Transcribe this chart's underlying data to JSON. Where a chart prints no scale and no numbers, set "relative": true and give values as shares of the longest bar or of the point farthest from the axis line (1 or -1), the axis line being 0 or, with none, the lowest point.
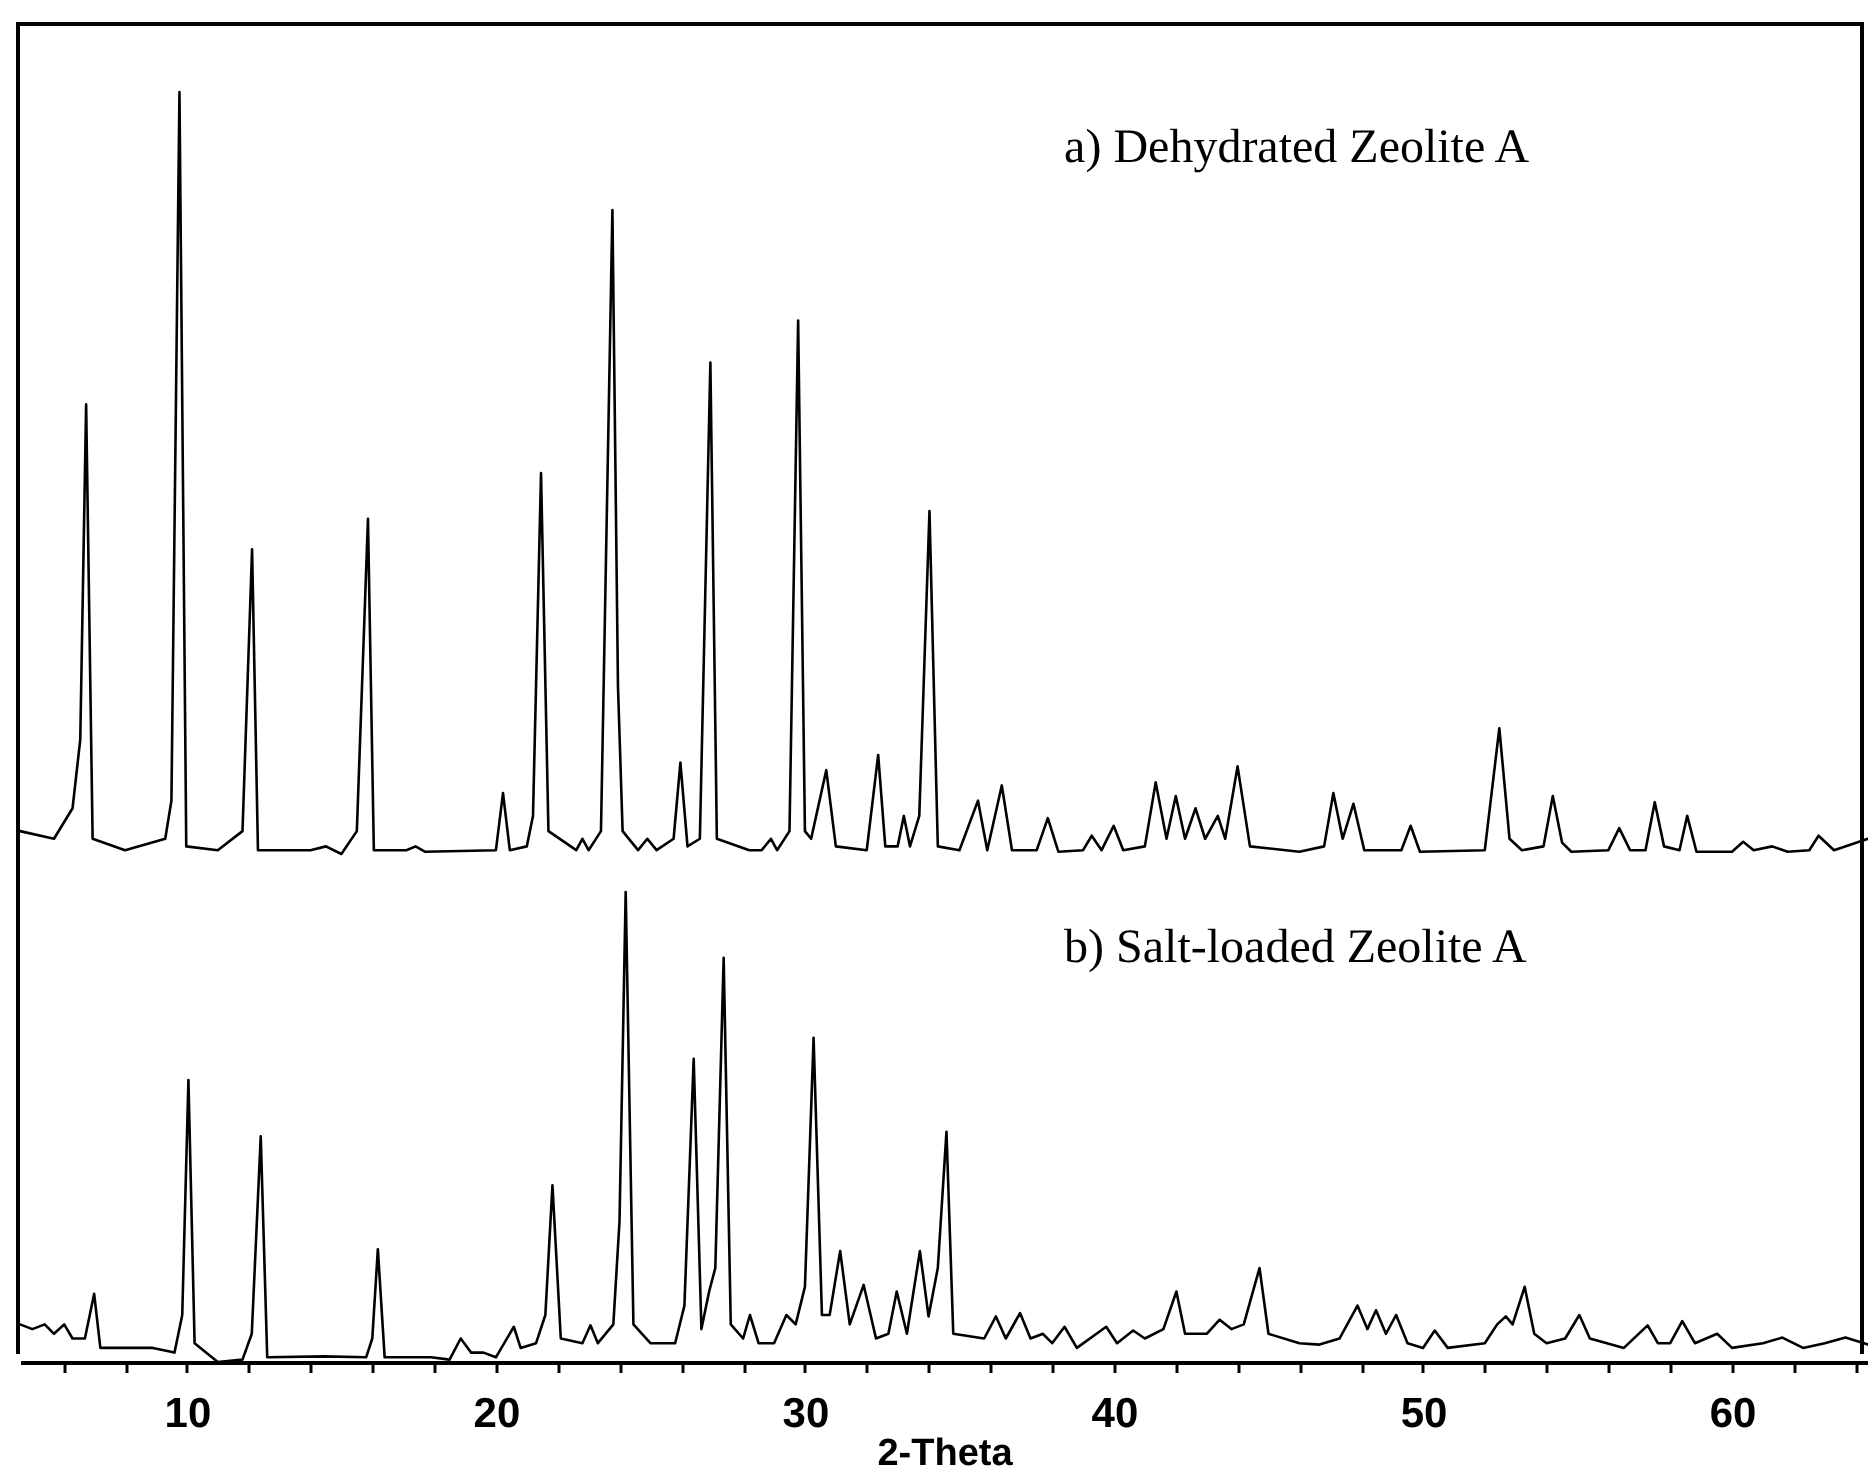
{
  "chart_data": [
    {
      "type": "line",
      "relative": true,
      "xlim": [
        4.6,
        64.4
      ],
      "tick_labels": false,
      "x": [
        4.6,
        5.7,
        6.3,
        6.55,
        6.74,
        6.95,
        8.0,
        9.3,
        9.5,
        9.76,
        9.98,
        11.0,
        11.8,
        12.11,
        12.3,
        14.0,
        14.5,
        15.0,
        15.5,
        15.86,
        16.05,
        17.1,
        17.4,
        17.7,
        20.0,
        20.23,
        20.45,
        21.0,
        21.2,
        21.46,
        21.7,
        22.6,
        22.8,
        23.0,
        23.4,
        23.77,
        23.95,
        24.1,
        24.6,
        24.9,
        25.2,
        25.75,
        25.97,
        26.2,
        26.6,
        26.94,
        27.15,
        28.2,
        28.6,
        28.9,
        29.1,
        29.5,
        29.78,
        30.0,
        30.2,
        30.69,
        31.0,
        32.0,
        32.37,
        32.6,
        33.0,
        33.2,
        33.4,
        33.7,
        34.03,
        34.3,
        35.0,
        35.6,
        35.9,
        36.37,
        36.7,
        37.5,
        37.86,
        38.2,
        39.0,
        39.28,
        39.6,
        39.99,
        40.3,
        41.0,
        41.35,
        41.7,
        42.0,
        42.3,
        42.64,
        42.95,
        43.36,
        43.6,
        44.0,
        44.4,
        46.0,
        46.8,
        47.1,
        47.4,
        47.75,
        48.1,
        49.3,
        49.6,
        49.9,
        52.0,
        52.47,
        52.8,
        53.2,
        53.9,
        54.2,
        54.5,
        54.8,
        56.0,
        56.35,
        56.7,
        57.2,
        57.5,
        57.8,
        58.3,
        58.55,
        58.85,
        60.0,
        60.36,
        60.7,
        61.3,
        61.8,
        62.5,
        62.8,
        63.3,
        64.4
      ],
      "series": [
        {
          "name": "a) Dehydrated Zeolite A",
          "color": "#000000",
          "values": [
            0.03,
            0.02,
            0.06,
            0.15,
            0.59,
            0.02,
            0.005,
            0.02,
            0.07,
            1.0,
            0.01,
            0.005,
            0.03,
            0.4,
            0.005,
            0.005,
            0.01,
            0,
            0.03,
            0.44,
            0.005,
            0.005,
            0.01,
            0.003,
            0.005,
            0.08,
            0.005,
            0.01,
            0.05,
            0.5,
            0.03,
            0.005,
            0.02,
            0.005,
            0.03,
            0.845,
            0.22,
            0.03,
            0.005,
            0.02,
            0.005,
            0.02,
            0.12,
            0.01,
            0.02,
            0.645,
            0.02,
            0.005,
            0.005,
            0.02,
            0.005,
            0.03,
            0.7,
            0.03,
            0.02,
            0.11,
            0.01,
            0.005,
            0.13,
            0.01,
            0.01,
            0.05,
            0.01,
            0.05,
            0.45,
            0.01,
            0.005,
            0.07,
            0.005,
            0.09,
            0.005,
            0.005,
            0.047,
            0.003,
            0.005,
            0.024,
            0.005,
            0.037,
            0.005,
            0.01,
            0.094,
            0.02,
            0.076,
            0.02,
            0.06,
            0.02,
            0.05,
            0.02,
            0.115,
            0.01,
            0.003,
            0.01,
            0.08,
            0.02,
            0.066,
            0.005,
            0.005,
            0.037,
            0.003,
            0.005,
            0.165,
            0.02,
            0.005,
            0.01,
            0.076,
            0.015,
            0.003,
            0.005,
            0.034,
            0.005,
            0.005,
            0.068,
            0.01,
            0.005,
            0.05,
            0.003,
            0.003,
            0.016,
            0.005,
            0.01,
            0.003,
            0.005,
            0.024,
            0.005,
            0.02
          ]
        }
      ]
    },
    {
      "type": "line",
      "relative": true,
      "xlim": [
        4.6,
        64.4
      ],
      "tick_labels": "x",
      "xlabel": "2-Theta",
      "xticks": [
        {
          "value": 6,
          "label": null
        },
        {
          "value": 8,
          "label": null
        },
        10,
        {
          "value": 12,
          "label": null
        },
        {
          "value": 14,
          "label": null
        },
        {
          "value": 16,
          "label": null
        },
        {
          "value": 18,
          "label": null
        },
        20,
        {
          "value": 22,
          "label": null
        },
        {
          "value": 24,
          "label": null
        },
        {
          "value": 26,
          "label": null
        },
        {
          "value": 28,
          "label": null
        },
        30,
        {
          "value": 32,
          "label": null
        },
        {
          "value": 34,
          "label": null
        },
        {
          "value": 36,
          "label": null
        },
        {
          "value": 38,
          "label": null
        },
        40,
        {
          "value": 42,
          "label": null
        },
        {
          "value": 44,
          "label": null
        },
        {
          "value": 46,
          "label": null
        },
        {
          "value": 48,
          "label": null
        },
        50,
        {
          "value": 52,
          "label": null
        },
        {
          "value": 54,
          "label": null
        },
        {
          "value": 56,
          "label": null
        },
        {
          "value": 58,
          "label": null
        },
        60,
        {
          "value": 62,
          "label": null
        },
        {
          "value": 64,
          "label": null
        }
      ],
      "x": [
        4.6,
        5.0,
        5.4,
        5.7,
        6.03,
        6.3,
        6.7,
        7.0,
        7.2,
        8.9,
        9.6,
        9.85,
        10.05,
        10.25,
        11.0,
        11.8,
        12.1,
        12.39,
        12.6,
        14.44,
        15.8,
        16.0,
        16.18,
        16.4,
        17.9,
        18.5,
        18.86,
        19.2,
        19.6,
        20.0,
        20.58,
        20.8,
        21.3,
        21.6,
        21.83,
        22.1,
        22.8,
        23.06,
        23.3,
        23.8,
        24.0,
        24.2,
        24.45,
        25.0,
        25.8,
        26.1,
        26.4,
        26.65,
        26.9,
        27.1,
        27.37,
        27.6,
        28.0,
        28.22,
        28.5,
        29.0,
        29.4,
        29.7,
        30.0,
        30.28,
        30.55,
        30.8,
        31.14,
        31.45,
        31.9,
        32.3,
        32.7,
        32.97,
        33.3,
        33.72,
        34.0,
        34.3,
        34.58,
        34.8,
        35.8,
        36.18,
        36.5,
        36.96,
        37.3,
        37.7,
        38.0,
        38.4,
        38.8,
        39.75,
        40.1,
        40.62,
        41.0,
        41.6,
        42.02,
        42.3,
        43.0,
        43.42,
        43.8,
        44.2,
        44.71,
        45.0,
        46.0,
        46.65,
        47.3,
        47.88,
        48.2,
        48.48,
        48.8,
        49.13,
        49.5,
        50.0,
        50.38,
        50.8,
        52.0,
        52.4,
        52.68,
        52.9,
        53.29,
        53.6,
        54.0,
        54.6,
        55.06,
        55.4,
        56.5,
        57.27,
        57.6,
        58.0,
        58.39,
        58.8,
        59.52,
        60.0,
        61.0,
        61.63,
        62.3,
        63.0,
        63.67,
        64.4
      ],
      "series": [
        {
          "name": "b) Salt-loaded Zeolite A",
          "color": "#000000",
          "values": [
            0.08,
            0.07,
            0.08,
            0.06,
            0.08,
            0.05,
            0.05,
            0.145,
            0.03,
            0.03,
            0.02,
            0.1,
            0.6,
            0.04,
            0,
            0.005,
            0.06,
            0.48,
            0.01,
            0.012,
            0.01,
            0.05,
            0.24,
            0.01,
            0.01,
            0.005,
            0.05,
            0.02,
            0.02,
            0.01,
            0.075,
            0.03,
            0.04,
            0.1,
            0.376,
            0.05,
            0.04,
            0.078,
            0.04,
            0.08,
            0.3,
            1.0,
            0.08,
            0.04,
            0.04,
            0.12,
            0.645,
            0.07,
            0.15,
            0.2,
            0.86,
            0.08,
            0.05,
            0.1,
            0.04,
            0.04,
            0.1,
            0.08,
            0.16,
            0.69,
            0.1,
            0.1,
            0.236,
            0.08,
            0.164,
            0.05,
            0.06,
            0.15,
            0.06,
            0.236,
            0.097,
            0.2,
            0.49,
            0.06,
            0.05,
            0.097,
            0.05,
            0.104,
            0.05,
            0.06,
            0.04,
            0.075,
            0.03,
            0.075,
            0.04,
            0.067,
            0.05,
            0.07,
            0.15,
            0.06,
            0.06,
            0.09,
            0.07,
            0.08,
            0.2,
            0.06,
            0.04,
            0.037,
            0.05,
            0.12,
            0.07,
            0.11,
            0.06,
            0.1,
            0.04,
            0.03,
            0.067,
            0.03,
            0.04,
            0.08,
            0.097,
            0.08,
            0.16,
            0.06,
            0.04,
            0.05,
            0.1,
            0.05,
            0.03,
            0.078,
            0.04,
            0.04,
            0.087,
            0.04,
            0.06,
            0.03,
            0.04,
            0.052,
            0.03,
            0.04,
            0.052,
            0.037
          ]
        }
      ]
    }
  ]
}
